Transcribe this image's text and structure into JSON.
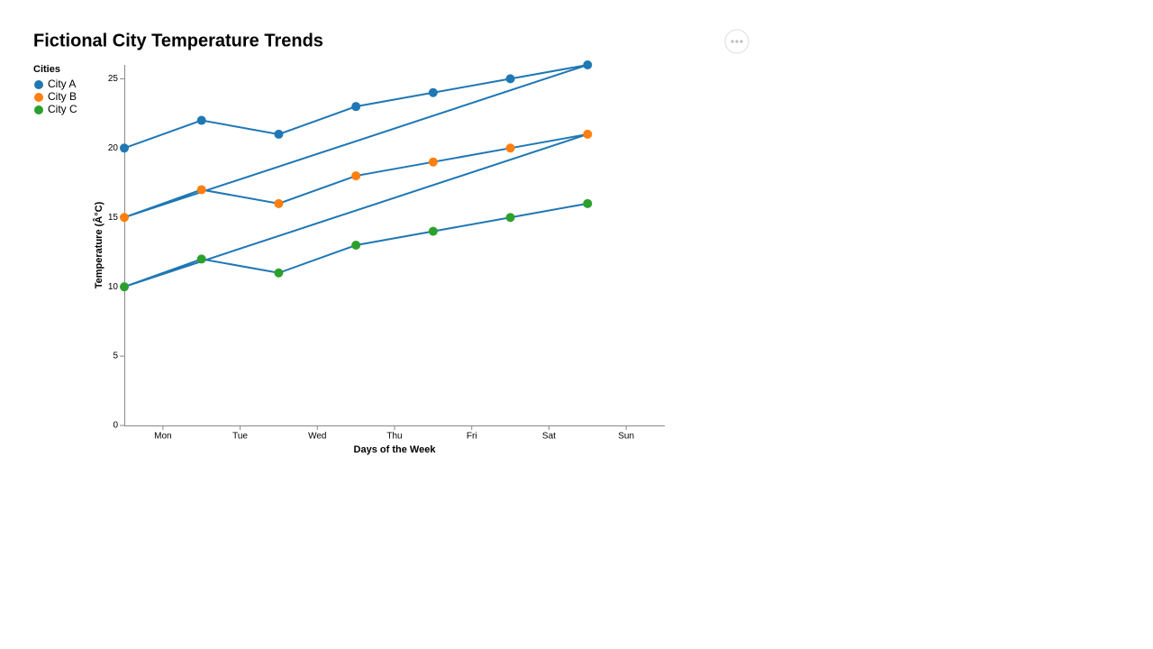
{
  "chart_data": {
    "type": "line",
    "title": "Fictional City Temperature Trends",
    "x_label": "Days of the Week",
    "y_label": "Temperature (Â°C)",
    "legend_title": "Cities",
    "legend_position": "top-left",
    "categories": [
      "Mon",
      "Tue",
      "Wed",
      "Thu",
      "Fri",
      "Sat",
      "Sun"
    ],
    "line_color": "#1f77b4",
    "series": [
      {
        "name": "City A",
        "color": "#1f77b4",
        "values": [
          20,
          22,
          21,
          23,
          24,
          25,
          26
        ]
      },
      {
        "name": "City B",
        "color": "#ff7f0e",
        "values": [
          15,
          17,
          16,
          18,
          19,
          20,
          21
        ]
      },
      {
        "name": "City C",
        "color": "#2ca02c",
        "values": [
          10,
          12,
          11,
          13,
          14,
          15,
          16
        ]
      }
    ],
    "ylim": [
      0,
      26
    ],
    "yticks": [
      0,
      5,
      10,
      15,
      20,
      25
    ],
    "grid": false
  }
}
